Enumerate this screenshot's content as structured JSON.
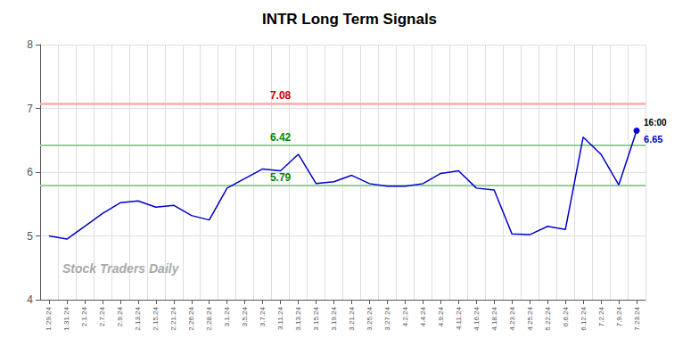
{
  "chart_data": {
    "type": "line",
    "title": "INTR Long Term Signals",
    "categories": [
      "1.29.24",
      "1.31.24",
      "2.1.24",
      "2.7.24",
      "2.9.24",
      "2.13.24",
      "2.15.24",
      "2.21.24",
      "2.26.24",
      "2.28.24",
      "3.1.24",
      "3.5.24",
      "3.7.24",
      "3.11.24",
      "3.13.24",
      "3.15.24",
      "3.19.24",
      "3.21.24",
      "3.25.24",
      "3.27.24",
      "4.2.24",
      "4.4.24",
      "4.9.24",
      "4.11.24",
      "4.16.24",
      "4.18.24",
      "4.23.24",
      "4.25.24",
      "5.22.24",
      "6.6.24",
      "6.12.24",
      "7.2.24",
      "7.9.24",
      "7.23.24"
    ],
    "values": [
      5.0,
      4.95,
      5.15,
      5.35,
      5.52,
      5.55,
      5.45,
      5.48,
      5.32,
      5.25,
      5.75,
      5.9,
      6.05,
      6.02,
      6.28,
      5.82,
      5.85,
      5.95,
      5.82,
      5.78,
      5.78,
      5.82,
      5.98,
      6.02,
      5.75,
      5.72,
      5.03,
      5.02,
      5.15,
      5.1,
      6.55,
      6.28,
      5.8,
      6.65
    ],
    "color": "#0000cc",
    "ylim": [
      4,
      8
    ],
    "yticks": [
      4,
      5,
      6,
      7,
      8
    ],
    "grid": true,
    "hlines": [
      {
        "value": 7.08,
        "color": "#ffaaaa",
        "label_color": "#cc0000"
      },
      {
        "value": 6.42,
        "color": "#99cc99",
        "label_color": "#008800"
      },
      {
        "value": 5.79,
        "color": "#99cc99",
        "label_color": "#008800"
      }
    ],
    "annotations": [
      {
        "text": "16:00"
      },
      {
        "text": "6.65",
        "color": "#0000cc"
      }
    ],
    "watermark": {
      "text": "Stock Traders Daily",
      "color": "#aaaaaa"
    }
  }
}
